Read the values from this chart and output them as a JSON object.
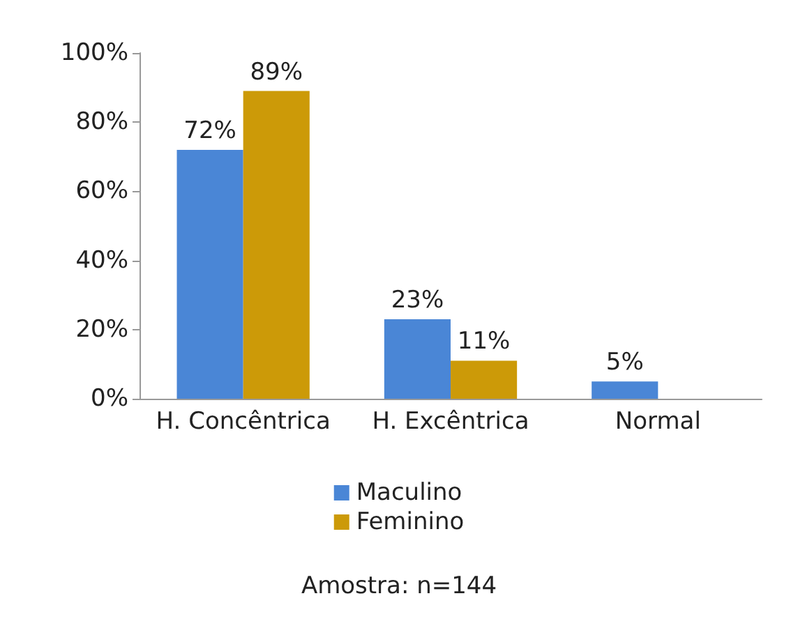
{
  "chart_data": {
    "type": "bar",
    "categories": [
      "H. Concêntrica",
      "H. Excêntrica",
      "Normal"
    ],
    "series": [
      {
        "name": "Maculino",
        "color": "#4a86d6",
        "values": [
          72,
          23,
          5
        ],
        "value_labels": [
          "72%",
          "23%",
          "5%"
        ]
      },
      {
        "name": "Feminino",
        "color": "#cc9a08",
        "values": [
          89,
          11,
          null
        ],
        "value_labels": [
          "89%",
          "11%",
          null
        ]
      }
    ],
    "ylim": [
      0,
      100
    ],
    "yticks": [
      {
        "value": 0,
        "label": "0%"
      },
      {
        "value": 20,
        "label": "20%"
      },
      {
        "value": 40,
        "label": "40%"
      },
      {
        "value": 60,
        "label": "60%"
      },
      {
        "value": 80,
        "label": "80%"
      },
      {
        "value": 100,
        "label": "100%"
      }
    ],
    "grid": false,
    "legend": "bottom",
    "annotations": [
      "Amostra: n=144"
    ]
  }
}
